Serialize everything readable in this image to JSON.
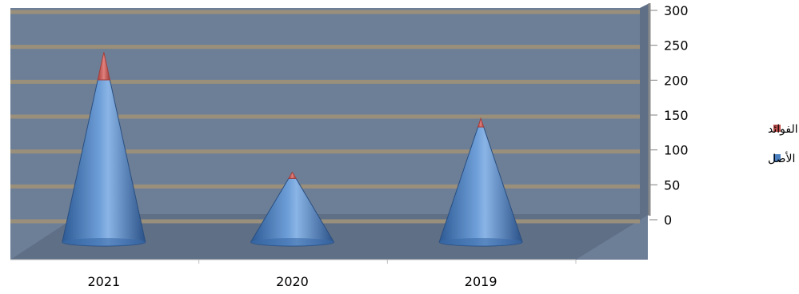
{
  "chart_data": {
    "type": "bar",
    "style": "3d-cone-stacked",
    "categories": [
      "2021",
      "2020",
      "2019"
    ],
    "series": [
      {
        "name": "الأصل",
        "values": [
          205,
          62,
          135
        ],
        "color": "#4a7fc0"
      },
      {
        "name": "الفوائد",
        "values": [
          35,
          6,
          10
        ],
        "color": "#c0504d"
      }
    ],
    "y_ticks": [
      "300",
      "250",
      "200",
      "150",
      "100",
      "50",
      "0"
    ],
    "ylim": [
      0,
      300
    ],
    "grid": true,
    "legend_position": "right",
    "background_color": "#6d7f97",
    "gridline_color": "#9a8f7a",
    "side_wall_color": "#5f6f86",
    "title": "",
    "xlabel": "",
    "ylabel": ""
  }
}
